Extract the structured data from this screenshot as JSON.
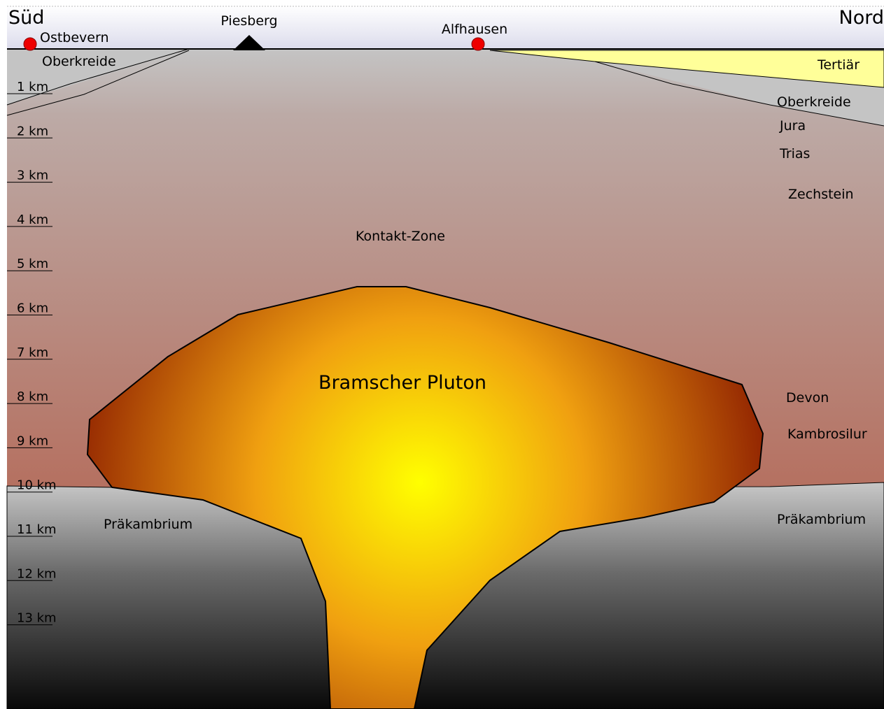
{
  "header": {
    "south": "Süd",
    "north": "Nord"
  },
  "places": {
    "ostbevern": "Ostbevern",
    "piesberg": "Piesberg",
    "alfhausen": "Alfhausen"
  },
  "layers": {
    "oberkreide_left": "Oberkreide",
    "tertiaer": "Tertiär",
    "oberkreide_right": "Oberkreide",
    "jura": "Jura",
    "trias": "Trias",
    "zechstein": "Zechstein",
    "kontakt_zone": "Kontakt-Zone",
    "pluton": "Bramscher Pluton",
    "devon": "Devon",
    "kambrosilur": "Kambrosilur",
    "praekambrium_left": "Präkambrium",
    "praekambrium_right": "Präkambrium"
  },
  "depths": [
    "1 km",
    "2 km",
    "3 km",
    "4 km",
    "5 km",
    "6 km",
    "7 km",
    "8 km",
    "9 km",
    "10 km",
    "11 km",
    "12 km",
    "13 km"
  ]
}
